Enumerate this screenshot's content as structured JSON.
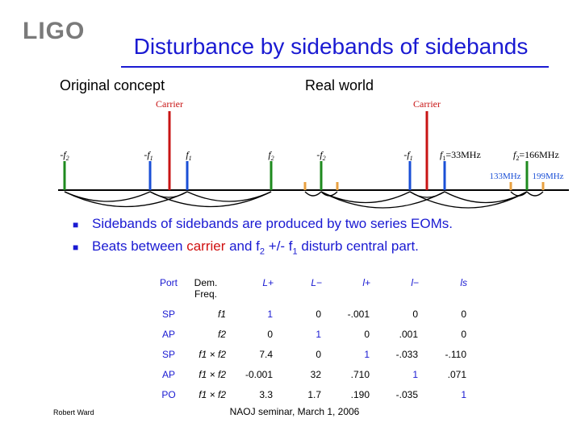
{
  "logo": "LIGO",
  "title": "Disturbance by sidebands of sidebands",
  "left_heading": "Original concept",
  "right_heading": "Real world",
  "diagram": {
    "carrier_label": "Carrier",
    "left_labels": [
      "-f",
      "-f",
      "f",
      "f"
    ],
    "left_label_subs": [
      "2",
      "1",
      "1",
      "2"
    ],
    "right_labels": [
      "-f",
      "-f"
    ],
    "right_label_subs": [
      "2",
      "1"
    ],
    "f1_text": "=33MHz",
    "f2_text": "=166MHz",
    "low_sideband": "133MHz",
    "high_sideband": "199MHz",
    "colors": {
      "carrier": "#c81414",
      "sideband_f1": "#1a4fd6",
      "sideband_f2": "#1e8a1e",
      "sideband_of_sideband": "#e8a040"
    }
  },
  "bullets": [
    {
      "text": "Sidebands of sidebands are produced by two series EOMs."
    },
    {
      "pre": "Beats between ",
      "carrier": "carrier",
      "mid": " and f",
      "sub2": "2",
      "mid2": " +/- f",
      "sub1": "1",
      "post": " disturb central part."
    }
  ],
  "table": {
    "headers": [
      "Port",
      "Dem. Freq.",
      "L+",
      "L−",
      "l+",
      "l−",
      "ls"
    ],
    "rows": [
      {
        "port": "SP",
        "freq": "f1",
        "values": [
          "1",
          "0",
          "-.001",
          "0",
          "0"
        ]
      },
      {
        "port": "AP",
        "freq": "f2",
        "values": [
          "0",
          "1",
          "0",
          ".001",
          "0"
        ]
      },
      {
        "port": "SP",
        "freq": "f1 × f2",
        "values": [
          "7.4",
          "0",
          "1",
          "-.033",
          "-.110"
        ]
      },
      {
        "port": "AP",
        "freq": "f1 × f2",
        "values": [
          "-0.001",
          "32",
          ".710",
          "1",
          ".071"
        ]
      },
      {
        "port": "PO",
        "freq": "f1 × f2",
        "values": [
          "3.3",
          "1.7",
          ".190",
          "-.035",
          "1"
        ]
      }
    ]
  },
  "footer_left": "Robert Ward",
  "footer_center": "NAOJ seminar, March 1, 2006"
}
